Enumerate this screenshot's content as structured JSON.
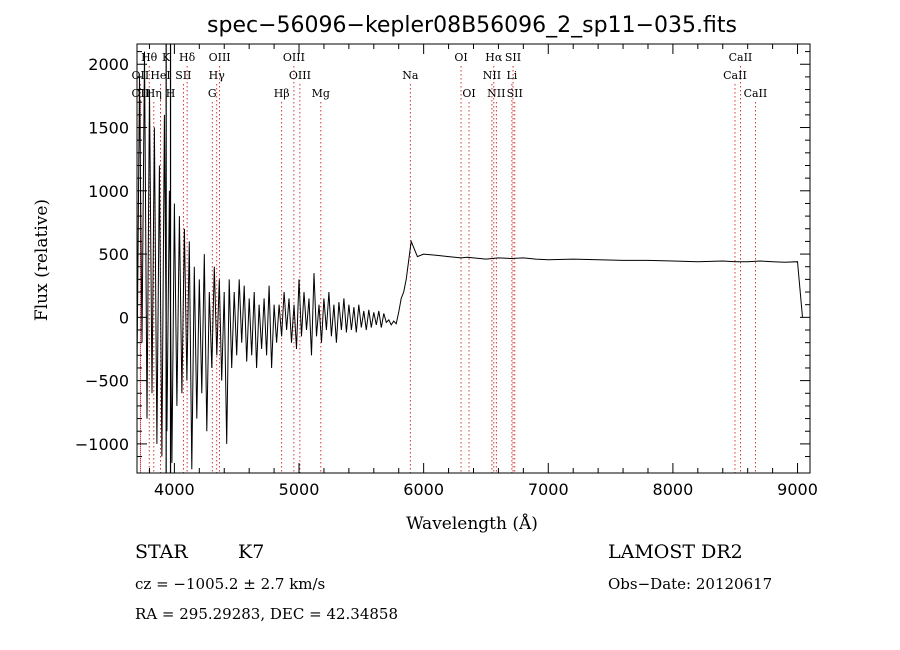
{
  "chart_data": {
    "type": "line",
    "title": "spec−56096−kepler08B56096_2_sp11−035.fits",
    "xlabel": "Wavelength (Å)",
    "ylabel": "Flux (relative)",
    "xlim": [
      3700,
      9100
    ],
    "ylim": [
      -1230,
      2160
    ],
    "xticks": [
      4000,
      5000,
      6000,
      7000,
      8000,
      9000
    ],
    "xtick_labels": [
      "4000",
      "5000",
      "6000",
      "7000",
      "8000",
      "9000"
    ],
    "yticks": [
      -1000,
      -500,
      0,
      500,
      1000,
      1500,
      2000
    ],
    "ytick_labels": [
      "−1000",
      "−500",
      "0",
      "500",
      "1000",
      "1500",
      "2000"
    ],
    "grid": false,
    "series": [
      {
        "values_description_note": "",
        "x": [
          3700,
          3720,
          3740,
          3760,
          3780,
          3800,
          3820,
          3840,
          3860,
          3880,
          3900,
          3920,
          3940,
          3960,
          3980,
          4000,
          4020,
          4040,
          4060,
          4080,
          4100,
          4120,
          4140,
          4160,
          4180,
          4200,
          4220,
          4240,
          4260,
          4280,
          4300,
          4320,
          4340,
          4360,
          4380,
          4400,
          4420,
          4440,
          4460,
          4480,
          4500,
          4520,
          4540,
          4560,
          4580,
          4600,
          4620,
          4640,
          4660,
          4680,
          4700,
          4720,
          4740,
          4760,
          4780,
          4800,
          4820,
          4840,
          4860,
          4880,
          4900,
          4920,
          4940,
          4960,
          4980,
          5000,
          5020,
          5040,
          5060,
          5080,
          5100,
          5120,
          5140,
          5160,
          5180,
          5200,
          5220,
          5240,
          5260,
          5280,
          5300,
          5320,
          5340,
          5360,
          5380,
          5400,
          5420,
          5440,
          5460,
          5480,
          5500,
          5520,
          5540,
          5560,
          5580,
          5600,
          5620,
          5640,
          5660,
          5680,
          5700,
          5720,
          5740,
          5760,
          5780,
          5800,
          5820,
          5840,
          5860,
          5880,
          5900,
          5950,
          6000,
          6100,
          6200,
          6300,
          6350,
          6400,
          6500,
          6600,
          6700,
          6800,
          6900,
          7000,
          7200,
          7400,
          7600,
          7800,
          8000,
          8200,
          8400,
          8500,
          8600,
          8700,
          8800,
          8900,
          9000,
          9040
        ],
        "y": [
          -450,
          1900,
          -200,
          2100,
          -800,
          1800,
          -600,
          1500,
          -1000,
          1200,
          -1100,
          1600,
          -900,
          1000,
          -1150,
          900,
          -700,
          800,
          -600,
          700,
          -500,
          600,
          -1200,
          400,
          -800,
          300,
          -600,
          500,
          -900,
          200,
          -400,
          400,
          -300,
          300,
          -500,
          200,
          -1000,
          300,
          -400,
          200,
          -300,
          300,
          -200,
          250,
          -350,
          150,
          -300,
          200,
          -400,
          100,
          -250,
          150,
          -300,
          250,
          -400,
          100,
          -200,
          100,
          -150,
          200,
          -100,
          150,
          -200,
          100,
          -250,
          300,
          -150,
          200,
          -100,
          150,
          -300,
          350,
          -150,
          100,
          -200,
          150,
          -100,
          200,
          -150,
          100,
          -200,
          120,
          -100,
          150,
          -120,
          100,
          -100,
          80,
          -120,
          100,
          -80,
          50,
          -100,
          60,
          -80,
          40,
          -60,
          50,
          -80,
          30,
          -40,
          -20,
          -60,
          -30,
          -50,
          40,
          150,
          200,
          300,
          450,
          600,
          480,
          500,
          490,
          480,
          470,
          475,
          470,
          460,
          470,
          465,
          470,
          460,
          455,
          460,
          455,
          450,
          450,
          445,
          440,
          445,
          440,
          440,
          445,
          440,
          435,
          440,
          0
        ]
      }
    ],
    "spectral_lines": [
      {
        "label": "Hθ",
        "x": 3798,
        "row": 0
      },
      {
        "label": "K",
        "x": 3934,
        "row": 0
      },
      {
        "label": "Hδ",
        "x": 4102,
        "row": 0
      },
      {
        "label": "OIII",
        "x": 4363,
        "row": 0
      },
      {
        "label": "OIII",
        "x": 4959,
        "row": 0
      },
      {
        "label": "OI",
        "x": 6300,
        "row": 0
      },
      {
        "label": "Hα",
        "x": 6563,
        "row": 0
      },
      {
        "label": "SII",
        "x": 6717,
        "row": 0
      },
      {
        "label": "CaII",
        "x": 8542,
        "row": 0
      },
      {
        "label": "OII",
        "x": 3727,
        "row": 1
      },
      {
        "label": "HeI",
        "x": 3889,
        "row": 1
      },
      {
        "label": "SII",
        "x": 4072,
        "row": 1
      },
      {
        "label": "Hγ",
        "x": 4340,
        "row": 1
      },
      {
        "label": "OIII",
        "x": 5007,
        "row": 1
      },
      {
        "label": "Na",
        "x": 5893,
        "row": 1
      },
      {
        "label": "NII",
        "x": 6548,
        "row": 1
      },
      {
        "label": "Li",
        "x": 6708,
        "row": 1
      },
      {
        "label": "CaII",
        "x": 8498,
        "row": 1
      },
      {
        "label": "OII",
        "x": 3727,
        "row": 2
      },
      {
        "label": "Hη",
        "x": 3835,
        "row": 2
      },
      {
        "label": "H",
        "x": 3969,
        "row": 2
      },
      {
        "label": "G",
        "x": 4304,
        "row": 2
      },
      {
        "label": "Hβ",
        "x": 4861,
        "row": 2
      },
      {
        "label": "Mg",
        "x": 5175,
        "row": 2
      },
      {
        "label": "OI",
        "x": 6364,
        "row": 2
      },
      {
        "label": "NII",
        "x": 6583,
        "row": 2
      },
      {
        "label": "SII",
        "x": 6731,
        "row": 2
      },
      {
        "label": "CaII",
        "x": 8662,
        "row": 2
      }
    ],
    "vertical_solid_lines_x": [
      3934,
      3969
    ],
    "colors": {
      "line": "#000000",
      "marker_lines": "#cc0000"
    }
  },
  "info": {
    "object_class": "STAR",
    "subclass": "K7",
    "survey": "LAMOST DR2",
    "redshift": "cz = −1005.2 ± 2.7 km/s",
    "obs_date": "Obs−Date: 20120617",
    "coords": "RA = 295.29283, DEC =  42.34858"
  }
}
